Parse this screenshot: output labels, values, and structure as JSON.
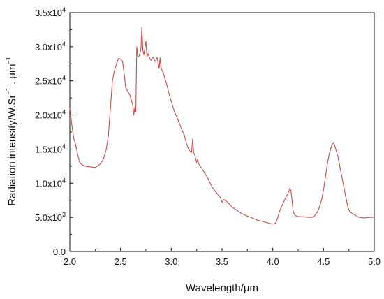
{
  "chart_data": {
    "type": "line",
    "xlabel": "Wavelength/μm",
    "ylabel": {
      "main": "Radiation intensity/W.Sr",
      "exp1": "−1",
      "middle": " . μm",
      "exp2": "−1"
    },
    "xlim": [
      2.0,
      5.0
    ],
    "ylim": [
      0,
      35000
    ],
    "grid": false,
    "legend": "none",
    "x_ticks": [
      {
        "value": 2.0,
        "label": "2.0"
      },
      {
        "value": 2.5,
        "label": "2.5"
      },
      {
        "value": 3.0,
        "label": "3.0"
      },
      {
        "value": 3.5,
        "label": "3.5"
      },
      {
        "value": 4.0,
        "label": "4.0"
      },
      {
        "value": 4.5,
        "label": "4.5"
      },
      {
        "value": 5.0,
        "label": "5.0"
      }
    ],
    "y_ticks": [
      {
        "value": 0,
        "base": "0.0",
        "exp": ""
      },
      {
        "value": 5000,
        "base": "5.0x10",
        "exp": "3"
      },
      {
        "value": 10000,
        "base": "1.0x10",
        "exp": "4"
      },
      {
        "value": 15000,
        "base": "1.5x10",
        "exp": "4"
      },
      {
        "value": 20000,
        "base": "2.0x10",
        "exp": "4"
      },
      {
        "value": 25000,
        "base": "2.5x10",
        "exp": "4"
      },
      {
        "value": 30000,
        "base": "3.0x10",
        "exp": "4"
      },
      {
        "value": 35000,
        "base": "3.5x10",
        "exp": "4"
      }
    ],
    "series": [
      {
        "color": "#c0504d",
        "x": [
          2.0,
          2.02,
          2.04,
          2.06,
          2.08,
          2.1,
          2.12,
          2.15,
          2.2,
          2.25,
          2.3,
          2.33,
          2.36,
          2.38,
          2.4,
          2.42,
          2.44,
          2.46,
          2.48,
          2.5,
          2.52,
          2.54,
          2.55,
          2.57,
          2.59,
          2.6,
          2.62,
          2.63,
          2.64,
          2.65,
          2.66,
          2.67,
          2.68,
          2.7,
          2.71,
          2.72,
          2.73,
          2.74,
          2.75,
          2.76,
          2.77,
          2.78,
          2.79,
          2.8,
          2.82,
          2.84,
          2.86,
          2.88,
          2.89,
          2.9,
          2.92,
          2.94,
          2.96,
          2.98,
          3.0,
          3.03,
          3.06,
          3.1,
          3.13,
          3.15,
          3.17,
          3.19,
          3.2,
          3.21,
          3.22,
          3.23,
          3.25,
          3.26,
          3.27,
          3.3,
          3.35,
          3.4,
          3.45,
          3.48,
          3.5,
          3.52,
          3.55,
          3.6,
          3.65,
          3.7,
          3.75,
          3.8,
          3.85,
          3.9,
          3.95,
          4.0,
          4.03,
          4.05,
          4.07,
          4.1,
          4.13,
          4.15,
          4.17,
          4.18,
          4.19,
          4.2,
          4.21,
          4.22,
          4.25,
          4.3,
          4.35,
          4.4,
          4.42,
          4.44,
          4.46,
          4.48,
          4.5,
          4.52,
          4.54,
          4.56,
          4.58,
          4.6,
          4.62,
          4.64,
          4.66,
          4.68,
          4.7,
          4.72,
          4.74,
          4.76,
          4.8,
          4.85,
          4.9,
          4.95,
          5.0
        ],
        "y": [
          21000,
          18500,
          16500,
          15500,
          14000,
          13000,
          12700,
          12500,
          12400,
          12300,
          12800,
          13500,
          15000,
          17000,
          21000,
          25000,
          26500,
          27500,
          28300,
          28200,
          27800,
          25500,
          24000,
          23500,
          23000,
          22500,
          21500,
          20000,
          21000,
          20500,
          30000,
          28500,
          28500,
          29500,
          32800,
          29500,
          28800,
          29800,
          30800,
          28500,
          29000,
          28600,
          28200,
          28000,
          28500,
          27800,
          28400,
          26800,
          28400,
          26800,
          26200,
          25200,
          24200,
          23000,
          22000,
          20500,
          19500,
          18000,
          17000,
          15800,
          15000,
          14600,
          14500,
          16500,
          14500,
          14200,
          13000,
          13500,
          12800,
          12200,
          11000,
          9500,
          8500,
          8000,
          7200,
          7600,
          7300,
          6500,
          6000,
          5500,
          5200,
          4900,
          4600,
          4400,
          4200,
          4000,
          4200,
          5000,
          6000,
          7000,
          8000,
          8500,
          9300,
          8800,
          7500,
          6000,
          5500,
          5300,
          5100,
          5100,
          5000,
          5000,
          5400,
          5800,
          6500,
          7500,
          9000,
          11000,
          13000,
          14500,
          15500,
          16000,
          15000,
          14000,
          12500,
          11000,
          9500,
          8000,
          6500,
          5800,
          5400,
          5000,
          4900,
          5000,
          5000
        ]
      }
    ]
  }
}
